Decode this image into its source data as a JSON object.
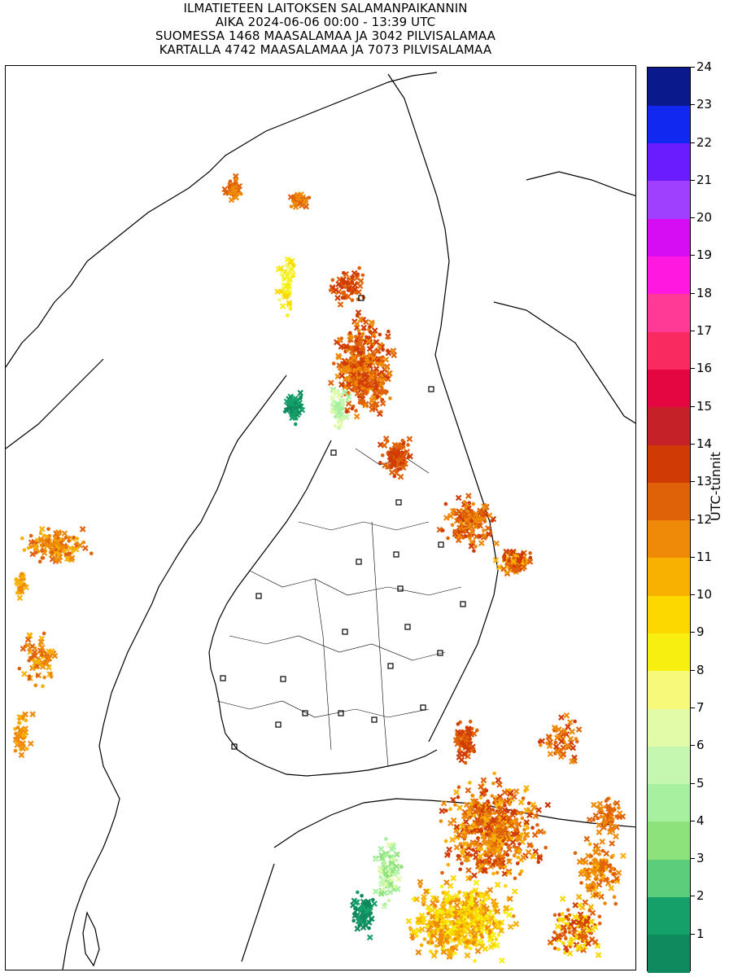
{
  "title": {
    "line1": "ILMATIETEEN LAITOKSEN SALAMANPAIKANNIN",
    "line2": "AIKA 2024-06-06 00:00 - 13:39 UTC",
    "line3": "SUOMESSA 1468 MAASALAMAA JA 3042 PILVISALAMAA",
    "line4": "KARTALLA 4742 MAASALAMAA JA 7073 PILVISALAMAA"
  },
  "colorbar": {
    "label": "UTC-tunnit",
    "ticks": [
      "1",
      "2",
      "3",
      "4",
      "5",
      "6",
      "7",
      "8",
      "9",
      "10",
      "11",
      "12",
      "13",
      "14",
      "15",
      "16",
      "17",
      "18",
      "19",
      "20",
      "21",
      "22",
      "23",
      "24"
    ],
    "colors": [
      "#0e8a5e",
      "#15a06a",
      "#5ccd7a",
      "#8ee27c",
      "#a6f0a0",
      "#c6f7b0",
      "#e2fba8",
      "#f6f97a",
      "#f6ef10",
      "#fcd700",
      "#f8b100",
      "#ee8a08",
      "#e06208",
      "#d03a05",
      "#c42228",
      "#e40640",
      "#f82a60",
      "#ff3a96",
      "#ff19e0",
      "#d60cf2",
      "#a040ff",
      "#6a1cff",
      "#1028f0",
      "#0a1a8c"
    ]
  },
  "map": {
    "legend_symbols": [
      "cloud-lightning-dot",
      "ground-lightning-cross"
    ],
    "station_marker": "open-square"
  }
}
